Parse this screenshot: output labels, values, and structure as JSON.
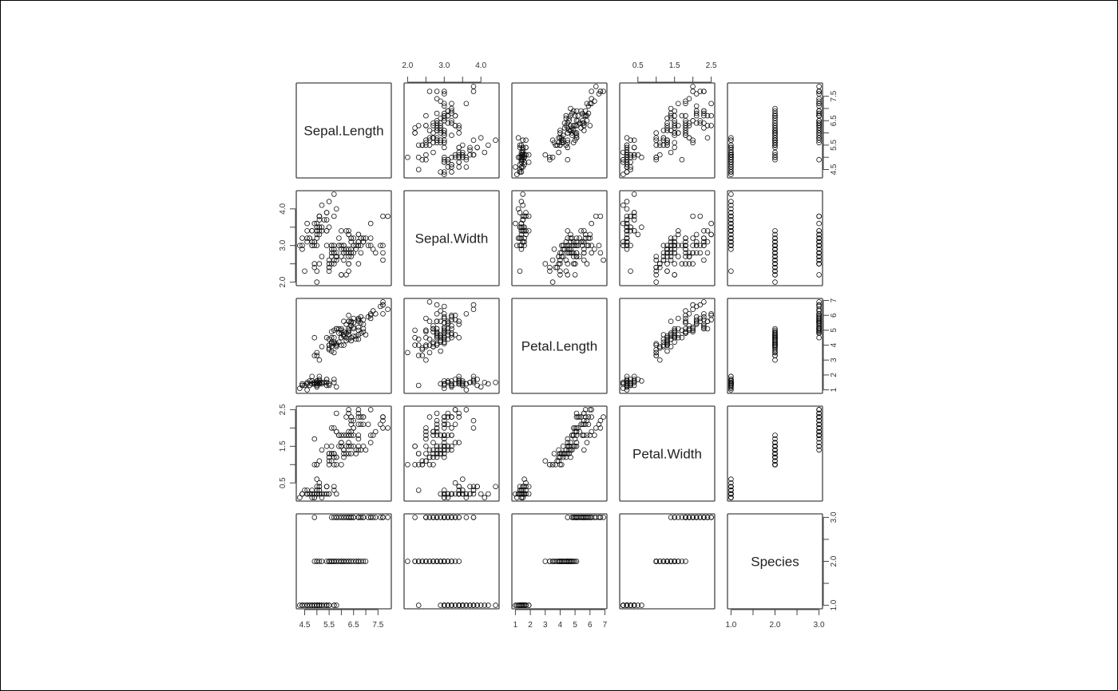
{
  "chart_data": {
    "type": "scatter",
    "subtype": "pairs-matrix",
    "variables": [
      "Sepal.Length",
      "Sepal.Width",
      "Petal.Length",
      "Petal.Width",
      "Species"
    ],
    "axes": [
      {
        "range": [
          4.3,
          7.9
        ],
        "ticks": [
          4.5,
          5.0,
          5.5,
          6.0,
          6.5,
          7.0,
          7.5
        ],
        "labels": [
          "4.5",
          "",
          "5.5",
          "",
          "6.5",
          "",
          "7.5"
        ]
      },
      {
        "range": [
          2.0,
          4.4
        ],
        "ticks": [
          2.0,
          2.5,
          3.0,
          3.5,
          4.0
        ],
        "labels": [
          "2.0",
          "",
          "3.0",
          "",
          "4.0"
        ]
      },
      {
        "range": [
          1.0,
          6.9
        ],
        "ticks": [
          1,
          2,
          3,
          4,
          5,
          6,
          7
        ],
        "labels": [
          "1",
          "2",
          "3",
          "4",
          "5",
          "6",
          "7"
        ]
      },
      {
        "range": [
          0.1,
          2.5
        ],
        "ticks": [
          0.5,
          1.0,
          1.5,
          2.0,
          2.5
        ],
        "labels": [
          "0.5",
          "",
          "1.5",
          "",
          "2.5"
        ]
      },
      {
        "range": [
          1,
          3
        ],
        "ticks": [
          1.0,
          1.5,
          2.0,
          2.5,
          3.0
        ],
        "labels": [
          "1.0",
          "",
          "2.0",
          "",
          "3.0"
        ]
      }
    ],
    "grid": false,
    "legend": "none",
    "rows": [
      [
        5.1,
        3.5,
        1.4,
        0.2,
        1
      ],
      [
        4.9,
        3.0,
        1.4,
        0.2,
        1
      ],
      [
        4.7,
        3.2,
        1.3,
        0.2,
        1
      ],
      [
        4.6,
        3.1,
        1.5,
        0.2,
        1
      ],
      [
        5.0,
        3.6,
        1.4,
        0.2,
        1
      ],
      [
        5.4,
        3.9,
        1.7,
        0.4,
        1
      ],
      [
        4.6,
        3.4,
        1.4,
        0.3,
        1
      ],
      [
        5.0,
        3.4,
        1.5,
        0.2,
        1
      ],
      [
        4.4,
        2.9,
        1.4,
        0.2,
        1
      ],
      [
        4.9,
        3.1,
        1.5,
        0.1,
        1
      ],
      [
        5.4,
        3.7,
        1.5,
        0.2,
        1
      ],
      [
        4.8,
        3.4,
        1.6,
        0.2,
        1
      ],
      [
        4.8,
        3.0,
        1.4,
        0.1,
        1
      ],
      [
        4.3,
        3.0,
        1.1,
        0.1,
        1
      ],
      [
        5.8,
        4.0,
        1.2,
        0.2,
        1
      ],
      [
        5.7,
        4.4,
        1.5,
        0.4,
        1
      ],
      [
        5.4,
        3.9,
        1.3,
        0.4,
        1
      ],
      [
        5.1,
        3.5,
        1.4,
        0.3,
        1
      ],
      [
        5.7,
        3.8,
        1.7,
        0.3,
        1
      ],
      [
        5.1,
        3.8,
        1.5,
        0.3,
        1
      ],
      [
        5.4,
        3.4,
        1.7,
        0.2,
        1
      ],
      [
        5.1,
        3.7,
        1.5,
        0.4,
        1
      ],
      [
        4.6,
        3.6,
        1.0,
        0.2,
        1
      ],
      [
        5.1,
        3.3,
        1.7,
        0.5,
        1
      ],
      [
        4.8,
        3.4,
        1.9,
        0.2,
        1
      ],
      [
        5.0,
        3.0,
        1.6,
        0.2,
        1
      ],
      [
        5.0,
        3.4,
        1.6,
        0.4,
        1
      ],
      [
        5.2,
        3.5,
        1.5,
        0.2,
        1
      ],
      [
        5.2,
        3.4,
        1.4,
        0.2,
        1
      ],
      [
        4.7,
        3.2,
        1.6,
        0.2,
        1
      ],
      [
        4.8,
        3.1,
        1.6,
        0.2,
        1
      ],
      [
        5.4,
        3.4,
        1.5,
        0.4,
        1
      ],
      [
        5.2,
        4.1,
        1.5,
        0.1,
        1
      ],
      [
        5.5,
        4.2,
        1.4,
        0.2,
        1
      ],
      [
        4.9,
        3.1,
        1.5,
        0.2,
        1
      ],
      [
        5.0,
        3.2,
        1.2,
        0.2,
        1
      ],
      [
        5.5,
        3.5,
        1.3,
        0.2,
        1
      ],
      [
        4.9,
        3.6,
        1.4,
        0.1,
        1
      ],
      [
        4.4,
        3.0,
        1.3,
        0.2,
        1
      ],
      [
        5.1,
        3.4,
        1.5,
        0.2,
        1
      ],
      [
        5.0,
        3.5,
        1.3,
        0.3,
        1
      ],
      [
        4.5,
        2.3,
        1.3,
        0.3,
        1
      ],
      [
        4.4,
        3.2,
        1.3,
        0.2,
        1
      ],
      [
        5.0,
        3.5,
        1.6,
        0.6,
        1
      ],
      [
        5.1,
        3.8,
        1.9,
        0.4,
        1
      ],
      [
        4.8,
        3.0,
        1.4,
        0.3,
        1
      ],
      [
        5.1,
        3.8,
        1.6,
        0.2,
        1
      ],
      [
        4.6,
        3.2,
        1.4,
        0.2,
        1
      ],
      [
        5.3,
        3.7,
        1.5,
        0.2,
        1
      ],
      [
        5.0,
        3.3,
        1.4,
        0.2,
        1
      ],
      [
        7.0,
        3.2,
        4.7,
        1.4,
        2
      ],
      [
        6.4,
        3.2,
        4.5,
        1.5,
        2
      ],
      [
        6.9,
        3.1,
        4.9,
        1.5,
        2
      ],
      [
        5.5,
        2.3,
        4.0,
        1.3,
        2
      ],
      [
        6.5,
        2.8,
        4.6,
        1.5,
        2
      ],
      [
        5.7,
        2.8,
        4.5,
        1.3,
        2
      ],
      [
        6.3,
        3.3,
        4.7,
        1.6,
        2
      ],
      [
        4.9,
        2.4,
        3.3,
        1.0,
        2
      ],
      [
        6.6,
        2.9,
        4.6,
        1.3,
        2
      ],
      [
        5.2,
        2.7,
        3.9,
        1.4,
        2
      ],
      [
        5.0,
        2.0,
        3.5,
        1.0,
        2
      ],
      [
        5.9,
        3.0,
        4.2,
        1.5,
        2
      ],
      [
        6.0,
        2.2,
        4.0,
        1.0,
        2
      ],
      [
        6.1,
        2.9,
        4.7,
        1.4,
        2
      ],
      [
        5.6,
        2.9,
        3.6,
        1.3,
        2
      ],
      [
        6.7,
        3.1,
        4.4,
        1.4,
        2
      ],
      [
        5.6,
        3.0,
        4.5,
        1.5,
        2
      ],
      [
        5.8,
        2.7,
        4.1,
        1.0,
        2
      ],
      [
        6.2,
        2.2,
        4.5,
        1.5,
        2
      ],
      [
        5.6,
        2.5,
        3.9,
        1.1,
        2
      ],
      [
        5.9,
        3.2,
        4.8,
        1.8,
        2
      ],
      [
        6.1,
        2.8,
        4.0,
        1.3,
        2
      ],
      [
        6.3,
        2.5,
        4.9,
        1.5,
        2
      ],
      [
        6.1,
        2.8,
        4.7,
        1.2,
        2
      ],
      [
        6.4,
        2.9,
        4.3,
        1.3,
        2
      ],
      [
        6.6,
        3.0,
        4.4,
        1.4,
        2
      ],
      [
        6.8,
        2.8,
        4.8,
        1.4,
        2
      ],
      [
        6.7,
        3.0,
        5.0,
        1.7,
        2
      ],
      [
        6.0,
        2.9,
        4.5,
        1.5,
        2
      ],
      [
        5.7,
        2.6,
        3.5,
        1.0,
        2
      ],
      [
        5.5,
        2.4,
        3.8,
        1.1,
        2
      ],
      [
        5.5,
        2.4,
        3.7,
        1.0,
        2
      ],
      [
        5.8,
        2.7,
        3.9,
        1.2,
        2
      ],
      [
        6.0,
        2.7,
        5.1,
        1.6,
        2
      ],
      [
        5.4,
        3.0,
        4.5,
        1.5,
        2
      ],
      [
        6.0,
        3.4,
        4.5,
        1.6,
        2
      ],
      [
        6.7,
        3.1,
        4.7,
        1.5,
        2
      ],
      [
        6.3,
        2.3,
        4.4,
        1.3,
        2
      ],
      [
        5.6,
        3.0,
        4.1,
        1.3,
        2
      ],
      [
        5.5,
        2.5,
        4.0,
        1.3,
        2
      ],
      [
        5.5,
        2.6,
        4.4,
        1.2,
        2
      ],
      [
        6.1,
        3.0,
        4.6,
        1.4,
        2
      ],
      [
        5.8,
        2.6,
        4.0,
        1.2,
        2
      ],
      [
        5.0,
        2.3,
        3.3,
        1.0,
        2
      ],
      [
        5.6,
        2.7,
        4.2,
        1.3,
        2
      ],
      [
        5.7,
        3.0,
        4.2,
        1.2,
        2
      ],
      [
        5.7,
        2.9,
        4.2,
        1.3,
        2
      ],
      [
        6.2,
        2.9,
        4.3,
        1.3,
        2
      ],
      [
        5.1,
        2.5,
        3.0,
        1.1,
        2
      ],
      [
        5.7,
        2.8,
        4.1,
        1.3,
        2
      ],
      [
        6.3,
        3.3,
        6.0,
        2.5,
        3
      ],
      [
        5.8,
        2.7,
        5.1,
        1.9,
        3
      ],
      [
        7.1,
        3.0,
        5.9,
        2.1,
        3
      ],
      [
        6.3,
        2.9,
        5.6,
        1.8,
        3
      ],
      [
        6.5,
        3.0,
        5.8,
        2.2,
        3
      ],
      [
        7.6,
        3.0,
        6.6,
        2.1,
        3
      ],
      [
        4.9,
        2.5,
        4.5,
        1.7,
        3
      ],
      [
        7.3,
        2.9,
        6.3,
        1.8,
        3
      ],
      [
        6.7,
        2.5,
        5.8,
        1.8,
        3
      ],
      [
        7.2,
        3.6,
        6.1,
        2.5,
        3
      ],
      [
        6.5,
        3.2,
        5.1,
        2.0,
        3
      ],
      [
        6.4,
        2.7,
        5.3,
        1.9,
        3
      ],
      [
        6.8,
        3.0,
        5.5,
        2.1,
        3
      ],
      [
        5.7,
        2.5,
        5.0,
        2.0,
        3
      ],
      [
        5.8,
        2.8,
        5.1,
        2.4,
        3
      ],
      [
        6.4,
        3.2,
        5.3,
        2.3,
        3
      ],
      [
        6.5,
        3.0,
        5.5,
        1.8,
        3
      ],
      [
        7.7,
        3.8,
        6.7,
        2.2,
        3
      ],
      [
        7.7,
        2.6,
        6.9,
        2.3,
        3
      ],
      [
        6.0,
        2.2,
        5.0,
        1.5,
        3
      ],
      [
        6.9,
        3.2,
        5.7,
        2.3,
        3
      ],
      [
        5.6,
        2.8,
        4.9,
        2.0,
        3
      ],
      [
        7.7,
        2.8,
        6.7,
        2.0,
        3
      ],
      [
        6.3,
        2.7,
        4.9,
        1.8,
        3
      ],
      [
        6.7,
        3.3,
        5.7,
        2.1,
        3
      ],
      [
        7.2,
        3.2,
        6.0,
        1.8,
        3
      ],
      [
        6.2,
        2.8,
        4.8,
        1.8,
        3
      ],
      [
        6.1,
        3.0,
        4.9,
        1.8,
        3
      ],
      [
        6.4,
        2.8,
        5.6,
        2.1,
        3
      ],
      [
        7.2,
        3.0,
        5.8,
        1.6,
        3
      ],
      [
        7.4,
        2.8,
        6.1,
        1.9,
        3
      ],
      [
        7.9,
        3.8,
        6.4,
        2.0,
        3
      ],
      [
        6.4,
        2.8,
        5.6,
        2.2,
        3
      ],
      [
        6.3,
        2.8,
        5.1,
        1.5,
        3
      ],
      [
        6.1,
        2.6,
        5.6,
        1.4,
        3
      ],
      [
        7.7,
        3.0,
        6.1,
        2.3,
        3
      ],
      [
        6.3,
        3.4,
        5.6,
        2.4,
        3
      ],
      [
        6.4,
        3.1,
        5.5,
        1.8,
        3
      ],
      [
        6.0,
        3.0,
        4.8,
        1.8,
        3
      ],
      [
        6.9,
        3.1,
        5.4,
        2.1,
        3
      ],
      [
        6.7,
        3.1,
        5.6,
        2.4,
        3
      ],
      [
        6.9,
        3.1,
        5.1,
        2.3,
        3
      ],
      [
        5.8,
        2.7,
        5.1,
        1.9,
        3
      ],
      [
        6.8,
        3.2,
        5.9,
        2.3,
        3
      ],
      [
        6.7,
        3.3,
        5.7,
        2.5,
        3
      ],
      [
        6.7,
        3.0,
        5.2,
        2.3,
        3
      ],
      [
        6.3,
        2.5,
        5.0,
        1.9,
        3
      ],
      [
        6.5,
        3.0,
        5.2,
        2.0,
        3
      ],
      [
        6.2,
        3.4,
        5.4,
        2.3,
        3
      ],
      [
        5.9,
        3.0,
        5.1,
        1.8,
        3
      ]
    ]
  }
}
